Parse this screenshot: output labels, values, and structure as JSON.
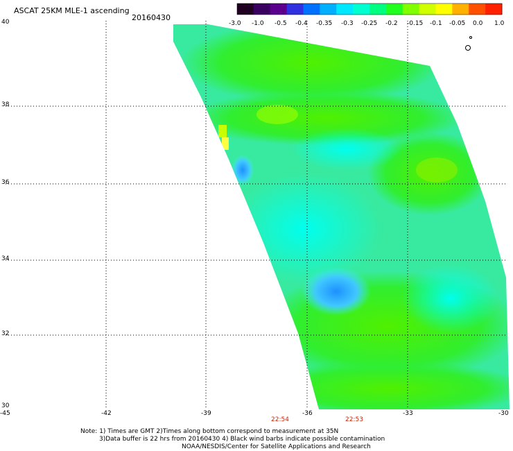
{
  "header": {
    "title": "ASCAT 25KM MLE-1 ascending",
    "date": "20160430"
  },
  "colorbar": {
    "labels": [
      "-3.0",
      "-1.0",
      "-0.5",
      "-0.4",
      "-0.35",
      "-0.3",
      "-0.25",
      "-0.2",
      "-0.15",
      "-0.1",
      "-0.05",
      "0.0",
      "1.0"
    ],
    "colors": [
      "#200020",
      "#5a008c",
      "#3030e0",
      "#0080ff",
      "#00c8ff",
      "#00ffff",
      "#00ffb0",
      "#00ff60",
      "#30ff00",
      "#a0ff00",
      "#ffff00",
      "#ff9000",
      "#ff2000"
    ]
  },
  "map": {
    "lat_labels": [
      "40",
      "38",
      "36",
      "34",
      "32",
      "30"
    ],
    "lon_labels": [
      "-45",
      "-42",
      "-39",
      "-36",
      "-33",
      "-30"
    ],
    "lat_range": [
      30,
      40
    ],
    "lon_range": [
      -45,
      -30
    ],
    "grid": "dotted",
    "times": [
      "22:54",
      "22:53"
    ]
  },
  "footer": {
    "note1": "Note: 1) Times are GMT 2)Times along bottom correspond to measurement at 35N",
    "note2": "3)Data buffer is 22 hrs from 20160430 4) Black wind barbs indicate possible contamination",
    "credit": "NOAA/NESDIS/Center for Satellite Applications and Research"
  }
}
